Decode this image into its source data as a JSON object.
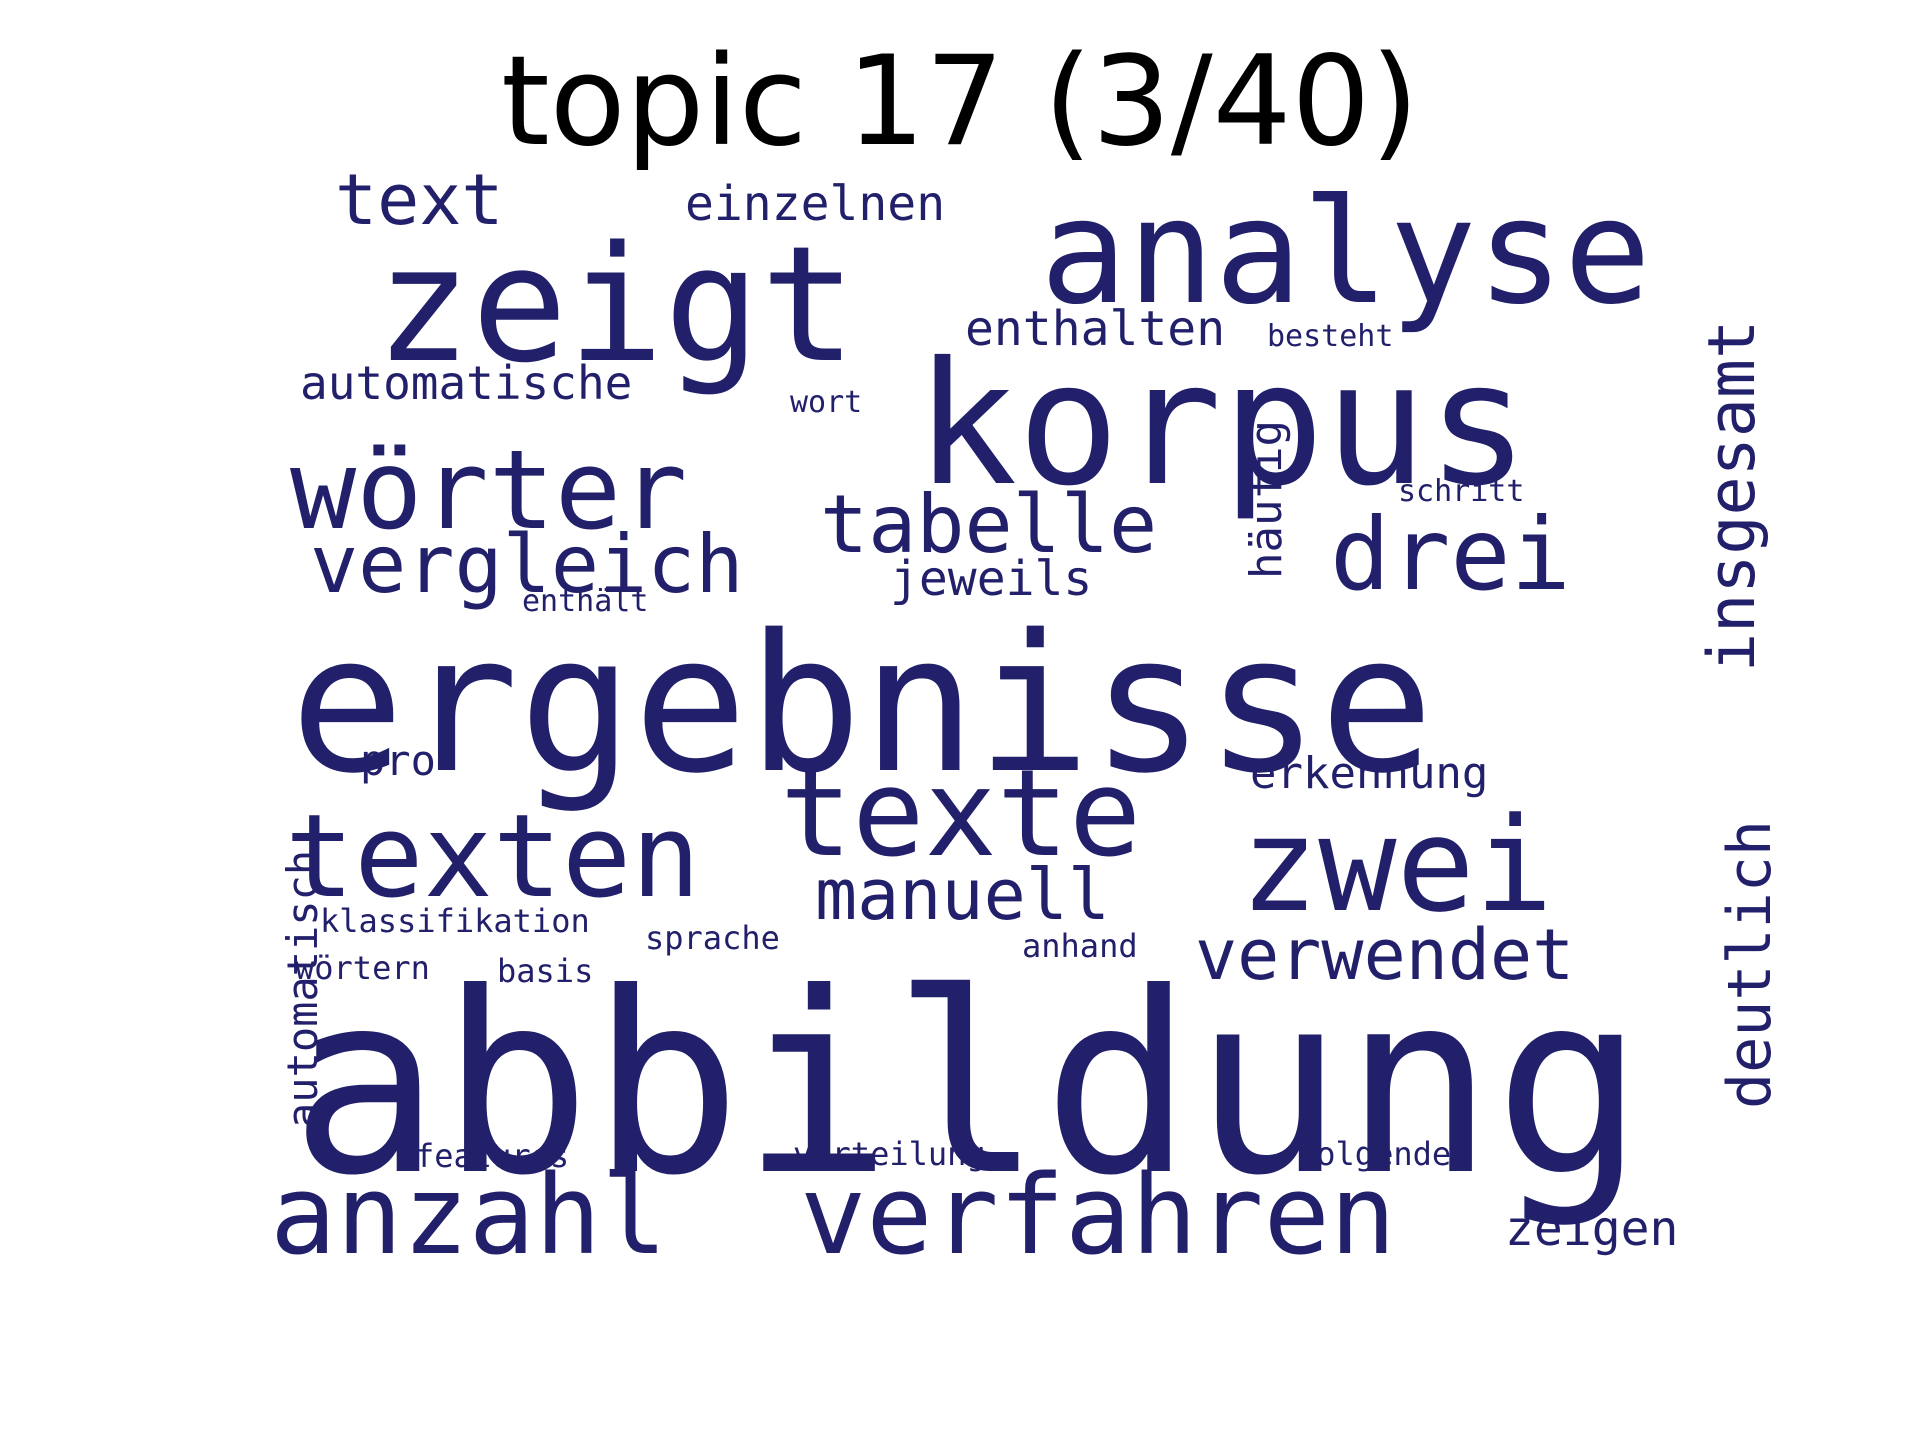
{
  "title": "topic 17 (3/40)",
  "text_color": "#000000",
  "word_color": "#22206a",
  "words": [
    {
      "text": "abbildung"
    },
    {
      "text": "ergebnisse"
    },
    {
      "text": "korpus"
    },
    {
      "text": "zeigt"
    },
    {
      "text": "analyse"
    },
    {
      "text": "zwei"
    },
    {
      "text": "texte"
    },
    {
      "text": "texten"
    },
    {
      "text": "wörter"
    },
    {
      "text": "verfahren"
    },
    {
      "text": "anzahl"
    },
    {
      "text": "drei"
    },
    {
      "text": "vergleich"
    },
    {
      "text": "tabelle"
    },
    {
      "text": "text"
    },
    {
      "text": "verwendet"
    },
    {
      "text": "manuell"
    },
    {
      "text": "insgesamt"
    },
    {
      "text": "deutlich"
    },
    {
      "text": "einzelnen"
    },
    {
      "text": "enthalten"
    },
    {
      "text": "zeigen"
    },
    {
      "text": "jeweils"
    },
    {
      "text": "automatische"
    },
    {
      "text": "häufig"
    },
    {
      "text": "erkennung"
    },
    {
      "text": "automatisch"
    },
    {
      "text": "pro"
    },
    {
      "text": "klassifikation"
    },
    {
      "text": "wörtern"
    },
    {
      "text": "sprache"
    },
    {
      "text": "basis"
    },
    {
      "text": "features"
    },
    {
      "text": "verteilung"
    },
    {
      "text": "folgenden"
    },
    {
      "text": "anhand"
    },
    {
      "text": "besteht"
    },
    {
      "text": "wort"
    },
    {
      "text": "schritt"
    },
    {
      "text": "enthält"
    }
  ]
}
